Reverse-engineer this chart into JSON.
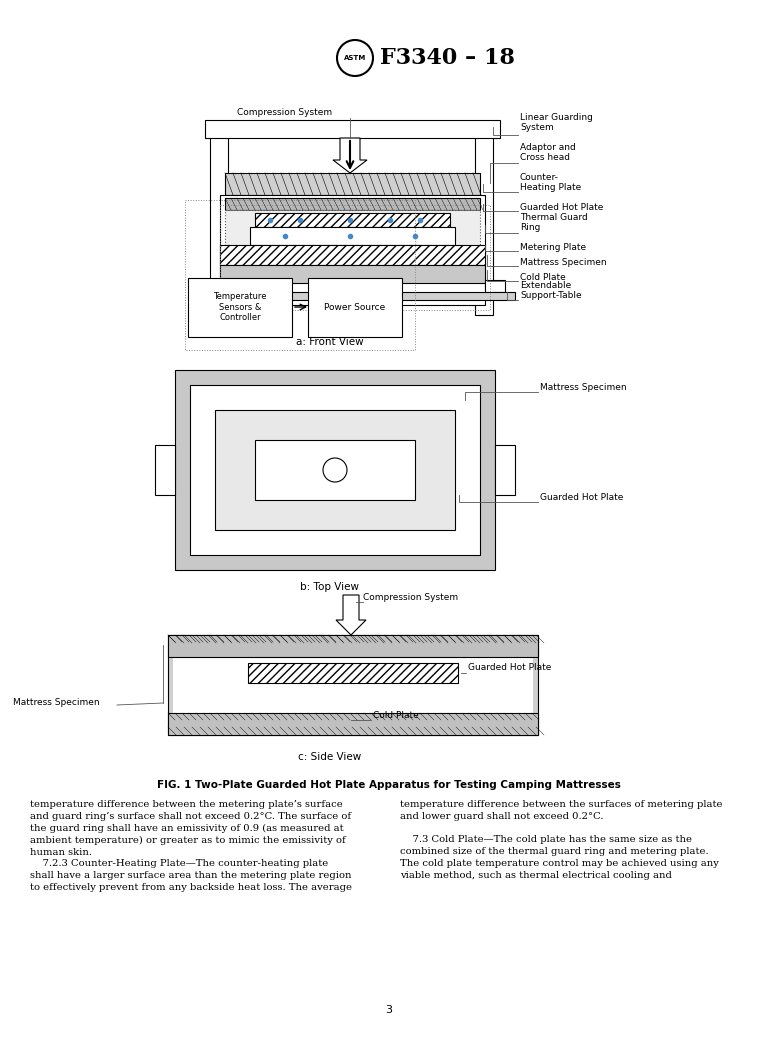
{
  "title": "F3340 – 18",
  "fig_caption": "FIG. 1 Two-Plate Guarded Hot Plate Apparatus for Testing Camping Mattresses",
  "front_view_label": "a: Front View",
  "top_view_label": "b: Top View",
  "side_view_label": "c: Side View",
  "front_labels": [
    "Compression System",
    "Linear Guarding\nSystem",
    "Adaptor and\nCross head",
    "Counter-\nHeating Plate",
    "Guarded Hot Plate",
    "Thermal Guard\nRing",
    "Metering Plate",
    "Mattress Specimen",
    "Cold Plate",
    "Extendable\nSupport-Table",
    "Temperature\nSensors &\nController",
    "Power Source"
  ],
  "top_labels": [
    "Mattress Specimen",
    "Guarded Hot Plate"
  ],
  "side_labels": [
    "Compression System",
    "Guarded Hot Plate",
    "Mattress Specimen",
    "Cold Plate"
  ],
  "body_text_left": "temperature difference between the metering plate’s surface\nand guard ring’s surface shall not exceed 0.2°C. The surface of\nthe guard ring shall have an emissivity of 0.9 (as measured at\nambient temperature) or greater as to mimic the emissivity of\nhuman skin.\n    7.2.3 Counter-Heating Plate—The counter-heating plate\nshall have a larger surface area than the metering plate region\nto effectively prevent from any backside heat loss. The average",
  "body_text_right": "temperature difference between the surfaces of metering plate\nand lower guard shall not exceed 0.2°C.\n\n    7.3 Cold Plate—The cold plate has the same size as the\ncombined size of the thermal guard ring and metering plate.\nThe cold plate temperature control may be achieved using any\nviable method, such as thermal electrical cooling and",
  "page_number": "3",
  "bg_color": "#ffffff",
  "line_color": "#000000",
  "hatch_color": "#000000",
  "gray_fill": "#c8c8c8",
  "light_gray": "#e8e8e8",
  "dotted_box_color": "#555555"
}
